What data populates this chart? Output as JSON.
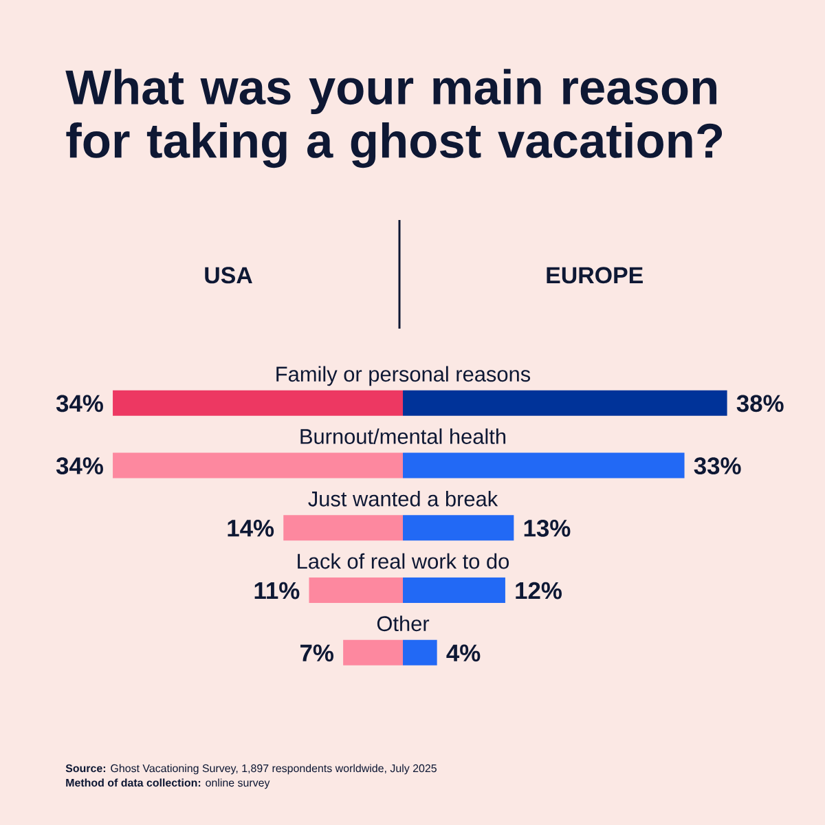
{
  "chart_data": [
    {
      "type": "bar",
      "orientation": "horizontal",
      "title": "What was your main reason for taking a ghost vacation?",
      "subtitle": "USA",
      "categories": [
        "Family or personal reasons",
        "Burnout/mental health",
        "Just wanted a break",
        "Lack of real work to do",
        "Other"
      ],
      "series": [
        {
          "colors": [
            "#ed3862",
            "#fd889f",
            "#fd889f",
            "#fd889f",
            "#fd889f"
          ],
          "values": [
            34,
            34,
            14,
            11,
            7
          ],
          "value_labels": [
            "34%",
            "34%",
            "14%",
            "11%",
            "7%"
          ]
        }
      ],
      "annotations": [
        "**Source:** Ghost Vacationing Survey, 1,897 respondents worldwide, July 2025",
        "**Method of data collection:** online survey"
      ]
    },
    {
      "type": "bar",
      "orientation": "horizontal",
      "subtitle": "EUROPE",
      "categories": [
        null,
        null,
        null,
        null,
        null
      ],
      "series": [
        {
          "colors": [
            "#003399",
            "#2269f5",
            "#2269f5",
            "#2269f5",
            "#2269f5"
          ],
          "values": [
            38,
            33,
            13,
            12,
            4
          ],
          "value_labels": [
            "38%",
            "33%",
            "13%",
            "12%",
            "4%"
          ]
        }
      ]
    }
  ]
}
